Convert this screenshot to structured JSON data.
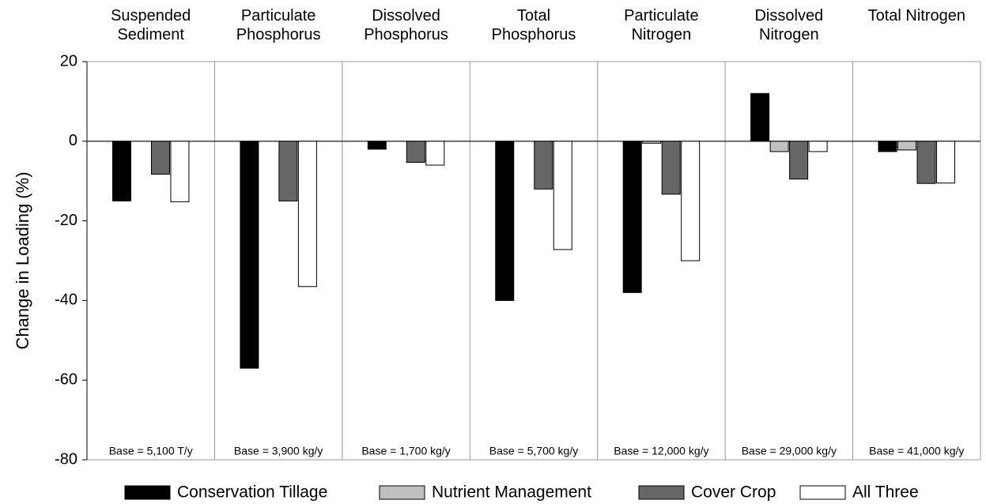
{
  "chart_data": {
    "type": "bar",
    "ylabel": "Change in Loading (%)",
    "categories": [
      "Suspended Sediment",
      "Particulate Phosphorus",
      "Dissolved Phosphorus",
      "Total Phosphorus",
      "Particulate Nitrogen",
      "Dissolved Nitrogen",
      "Total Nitrogen"
    ],
    "annotations": [
      "Base = 5,100 T/y",
      "Base = 3,900 kg/y",
      "Base = 1,700 kg/y",
      "Base = 5,700 kg/y",
      "Base = 12,000 kg/y",
      "Base = 29,000 kg/y",
      "Base = 41,000 kg/y"
    ],
    "series": [
      {
        "name": "Conservation Tillage",
        "color": "#000000",
        "values": [
          -15,
          -57,
          -2,
          -40,
          -38,
          12,
          -2.6
        ]
      },
      {
        "name": "Nutrient Management",
        "color": "#c0c0c0",
        "values": [
          0,
          0,
          0,
          0,
          -0.5,
          -2.6,
          -2.2
        ]
      },
      {
        "name": "Cover Crop",
        "color": "#666666",
        "values": [
          -8.3,
          -15,
          -5.3,
          -12,
          -13.3,
          -9.5,
          -10.6
        ]
      },
      {
        "name": "All Three",
        "color": "#ffffff",
        "values": [
          -15.2,
          -36.5,
          -6,
          -27.2,
          -30,
          -2.6,
          -10.5
        ]
      }
    ],
    "ylim": [
      -80,
      20
    ],
    "yticks": [
      -80,
      -60,
      -40,
      -20,
      0,
      20
    ]
  }
}
